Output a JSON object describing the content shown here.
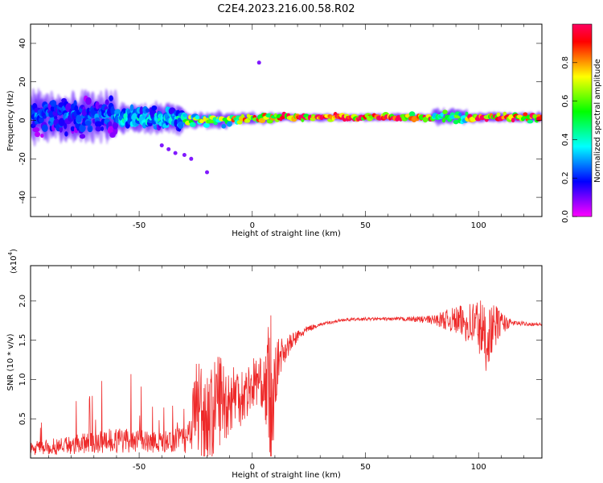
{
  "figure": {
    "title": "C2E4.2023.216.00.58.R02"
  },
  "chart_data": [
    {
      "type": "heatmap",
      "xlabel": "Height of straight line (km)",
      "ylabel": "Frequency (Hz)",
      "xlim": [
        -98,
        128
      ],
      "ylim": [
        -50,
        50
      ],
      "xticks": [
        -50,
        0,
        50,
        100
      ],
      "yticks": [
        -40,
        -20,
        0,
        20,
        40
      ],
      "grid": false,
      "colorbar": {
        "label": "Normalized spectral amplitude",
        "range": [
          0,
          1
        ],
        "ticks": [
          "0.0",
          "0.2",
          "0.4",
          "0.6",
          "0.8"
        ],
        "colormap": [
          "#ff00ff",
          "#8000ff",
          "#0000ff",
          "#0080ff",
          "#00ffff",
          "#00ff80",
          "#00ff00",
          "#80ff00",
          "#ffff00",
          "#ff8000",
          "#ff0000",
          "#ff0060"
        ]
      },
      "segments": [
        {
          "x": [
            -98,
            -60
          ],
          "center_hz": 2,
          "spread_hz": 12,
          "amplitude": 0.25
        },
        {
          "x": [
            -60,
            -30
          ],
          "center_hz": 1,
          "spread_hz": 7,
          "amplitude": 0.35
        },
        {
          "x": [
            -30,
            -10
          ],
          "center_hz": 0,
          "spread_hz": 4,
          "amplitude": 0.6
        },
        {
          "x": [
            -10,
            10
          ],
          "center_hz": 1,
          "spread_hz": 3,
          "amplitude": 0.75
        },
        {
          "x": [
            10,
            80
          ],
          "center_hz": 1.5,
          "spread_hz": 2,
          "amplitude": 0.95
        },
        {
          "x": [
            80,
            95
          ],
          "center_hz": 2,
          "spread_hz": 4,
          "amplitude": 0.55
        },
        {
          "x": [
            95,
            128
          ],
          "center_hz": 1.5,
          "spread_hz": 2.5,
          "amplitude": 0.9
        }
      ],
      "noise_points": [
        {
          "x": -40,
          "y": -13
        },
        {
          "x": -37,
          "y": -15
        },
        {
          "x": -34,
          "y": -17
        },
        {
          "x": -30,
          "y": -18
        },
        {
          "x": -27,
          "y": -20
        },
        {
          "x": -20,
          "y": -27
        },
        {
          "x": 3,
          "y": 30
        }
      ]
    },
    {
      "type": "line",
      "xlabel": "Height of straight line (km)",
      "ylabel": "SNR (10 * v/v)",
      "scale_label": "(x10",
      "scale_exponent": "4",
      "xlim": [
        -98,
        128
      ],
      "ylim": [
        0,
        2.45
      ],
      "xticks": [
        -50,
        0,
        50,
        100
      ],
      "yticks": [
        "0.5",
        "1.0",
        "1.5",
        "2.0"
      ],
      "grid": false,
      "color": "#ee2a2a",
      "x": [
        -98,
        -90,
        -80,
        -70,
        -60,
        -50,
        -40,
        -30,
        -27,
        -25,
        -22,
        -20,
        -17,
        -15,
        -12,
        -10,
        -7,
        -5,
        -2,
        0,
        3,
        5,
        7,
        8,
        9,
        10,
        12,
        15,
        20,
        25,
        30,
        40,
        50,
        60,
        70,
        80,
        85,
        90,
        95,
        100,
        103,
        105,
        108,
        110,
        115,
        128
      ],
      "baseline": [
        0.12,
        0.14,
        0.17,
        0.2,
        0.23,
        0.22,
        0.2,
        0.24,
        0.4,
        0.7,
        0.6,
        0.5,
        0.6,
        0.8,
        0.7,
        0.75,
        0.85,
        0.8,
        0.85,
        0.95,
        1.0,
        0.9,
        0.9,
        0.5,
        0.5,
        1.0,
        1.3,
        1.4,
        1.55,
        1.65,
        1.7,
        1.76,
        1.77,
        1.77,
        1.77,
        1.76,
        1.76,
        1.75,
        1.72,
        1.7,
        1.5,
        1.6,
        1.7,
        1.72,
        1.72,
        1.7
      ],
      "noise": [
        0.12,
        0.15,
        0.22,
        0.28,
        0.35,
        0.3,
        0.25,
        0.2,
        0.3,
        0.7,
        0.7,
        0.6,
        0.6,
        0.65,
        0.5,
        0.45,
        0.4,
        0.4,
        0.35,
        0.35,
        0.3,
        0.3,
        0.8,
        1.6,
        0.8,
        0.4,
        0.25,
        0.15,
        0.08,
        0.04,
        0.02,
        0.02,
        0.02,
        0.02,
        0.03,
        0.06,
        0.12,
        0.18,
        0.25,
        0.4,
        0.45,
        0.35,
        0.25,
        0.15,
        0.03,
        0.02
      ]
    }
  ]
}
